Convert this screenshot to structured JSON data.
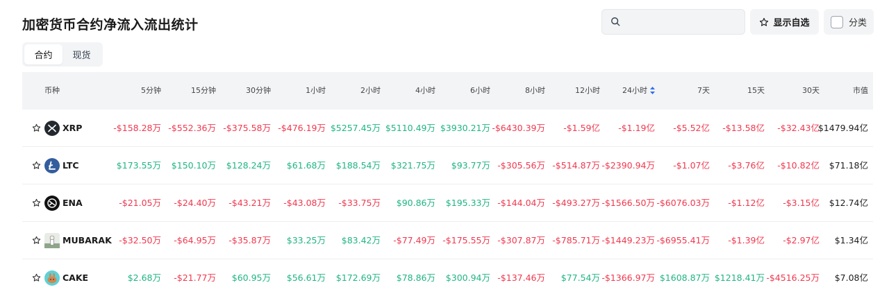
{
  "header": {
    "title": "加密货币合约净流入流出统计",
    "search_placeholder": "",
    "favorites_label": "显示自选",
    "category_label": "分类"
  },
  "tabs": [
    {
      "label": "合约",
      "active": true
    },
    {
      "label": "现货",
      "active": false
    }
  ],
  "columns": [
    "币种",
    "5分钟",
    "15分钟",
    "30分钟",
    "1小时",
    "2小时",
    "4小时",
    "6小时",
    "8小时",
    "12小时",
    "24小时",
    "7天",
    "15天",
    "30天",
    "市值"
  ],
  "sorted_column": "24小时",
  "colors": {
    "negative": "#f0384e",
    "positive": "#1fb583"
  },
  "rows": [
    {
      "coin": "XRP",
      "icon": "xrp-icon",
      "values": [
        "-$158.28万",
        "-$552.36万",
        "-$375.58万",
        "-$476.19万",
        "$5257.45万",
        "$5110.49万",
        "$3930.21万",
        "-$6430.39万",
        "-$1.59亿",
        "-$1.19亿",
        "-$5.52亿",
        "-$13.58亿",
        "-$32.43亿"
      ],
      "market_cap": "$1479.94亿"
    },
    {
      "coin": "LTC",
      "icon": "ltc-icon",
      "values": [
        "$173.55万",
        "$150.10万",
        "$128.24万",
        "$61.68万",
        "$188.54万",
        "$321.75万",
        "$93.77万",
        "-$305.56万",
        "-$514.87万",
        "-$2390.94万",
        "-$1.07亿",
        "-$3.76亿",
        "-$10.82亿"
      ],
      "market_cap": "$71.18亿"
    },
    {
      "coin": "ENA",
      "icon": "ena-icon",
      "values": [
        "-$21.05万",
        "-$24.40万",
        "-$43.21万",
        "-$43.08万",
        "-$33.75万",
        "$90.86万",
        "$195.33万",
        "-$144.04万",
        "-$493.27万",
        "-$1566.50万",
        "-$6076.03万",
        "-$1.12亿",
        "-$3.15亿"
      ],
      "market_cap": "$12.74亿"
    },
    {
      "coin": "MUBARAK",
      "icon": "mubarak-icon",
      "values": [
        "-$32.50万",
        "-$64.95万",
        "-$35.87万",
        "$33.25万",
        "$83.42万",
        "-$77.49万",
        "-$175.55万",
        "-$307.87万",
        "-$785.71万",
        "-$1449.23万",
        "-$6955.41万",
        "-$1.39亿",
        "-$2.97亿"
      ],
      "market_cap": "$1.34亿"
    },
    {
      "coin": "CAKE",
      "icon": "cake-icon",
      "values": [
        "$2.68万",
        "-$21.77万",
        "$60.95万",
        "$56.61万",
        "$172.69万",
        "$78.86万",
        "$300.94万",
        "-$137.46万",
        "$77.54万",
        "-$1366.97万",
        "$1608.87万",
        "$1218.41万",
        "-$4516.25万"
      ],
      "market_cap": "$7.08亿"
    }
  ]
}
